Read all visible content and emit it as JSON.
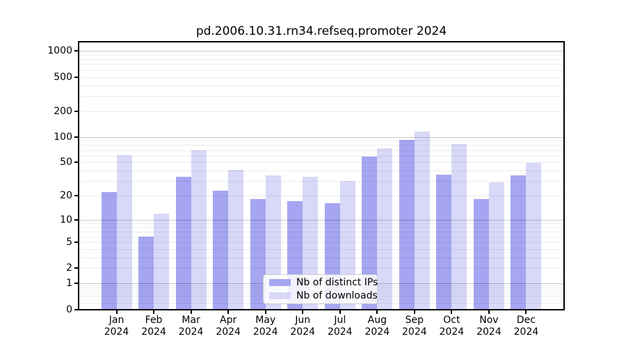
{
  "chart_data": {
    "type": "bar",
    "title": "pd.2006.10.31.rn34.refseq.promoter 2024",
    "categories": [
      "Jan",
      "Feb",
      "Mar",
      "Apr",
      "May",
      "Jun",
      "Jul",
      "Aug",
      "Sep",
      "Oct",
      "Nov",
      "Dec"
    ],
    "category_year": "2024",
    "series": [
      {
        "name": "Nb of distinct IPs",
        "color": "#a5a5f2",
        "values": [
          22,
          6,
          34,
          23,
          18,
          17,
          16,
          59,
          92,
          36,
          18,
          35
        ]
      },
      {
        "name": "Nb of downloads",
        "color": "#d8d8f8",
        "values": [
          61,
          12,
          70,
          41,
          35,
          34,
          30,
          73,
          115,
          82,
          29,
          49
        ]
      }
    ],
    "xlabel": "",
    "ylabel": "",
    "yscale": "log1p",
    "yticks": [
      0,
      1,
      2,
      5,
      10,
      20,
      50,
      100,
      200,
      500,
      1000
    ],
    "ylim": [
      0,
      1259
    ],
    "grid": "major-and-minor, drawn over bars",
    "legend_position": "lower-center"
  }
}
